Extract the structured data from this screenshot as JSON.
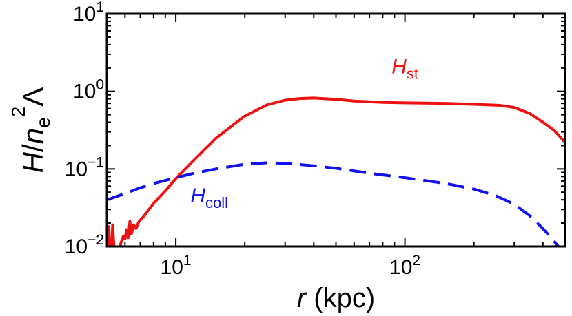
{
  "chart_data": {
    "type": "line",
    "title": "",
    "xlabel": {
      "var": "r",
      "unit": " (kpc)"
    },
    "ylabel": {
      "var1": "H",
      "slash": "/",
      "var2": "n",
      "sub": "e",
      "sup": "2",
      "tail": "Λ"
    },
    "x_scale": "log",
    "y_scale": "log",
    "xlim": [
      5,
      500
    ],
    "ylim": [
      0.01,
      10
    ],
    "x_ticks": [
      {
        "value": 10,
        "base": "10",
        "exp": "1"
      },
      {
        "value": 100,
        "base": "10",
        "exp": "2"
      }
    ],
    "y_ticks": [
      {
        "value": 0.01,
        "base": "10",
        "exp": "−2"
      },
      {
        "value": 0.1,
        "base": "10",
        "exp": "−1"
      },
      {
        "value": 1,
        "base": "10",
        "exp": "0"
      },
      {
        "value": 10,
        "base": "10",
        "exp": "1"
      }
    ],
    "series": [
      {
        "label": {
          "var": "H",
          "sub": "st"
        },
        "color": "#ee1111",
        "style": "solid",
        "points": [
          [
            5.05,
            0.006
          ],
          [
            5.1,
            0.018
          ],
          [
            5.2,
            0.004
          ],
          [
            5.3,
            0.019
          ],
          [
            5.45,
            0.005
          ],
          [
            5.6,
            0.004
          ],
          [
            5.75,
            0.011
          ],
          [
            5.9,
            0.0135
          ],
          [
            6.0,
            0.0125
          ],
          [
            6.1,
            0.0165
          ],
          [
            6.2,
            0.013
          ],
          [
            6.3,
            0.021
          ],
          [
            6.4,
            0.0145
          ],
          [
            6.55,
            0.019
          ],
          [
            6.7,
            0.017
          ],
          [
            6.9,
            0.021
          ],
          [
            7.2,
            0.024
          ],
          [
            8,
            0.036
          ],
          [
            9,
            0.052
          ],
          [
            10,
            0.075
          ],
          [
            12,
            0.13
          ],
          [
            15,
            0.25
          ],
          [
            20,
            0.48
          ],
          [
            25,
            0.67
          ],
          [
            30,
            0.77
          ],
          [
            35,
            0.81
          ],
          [
            40,
            0.82
          ],
          [
            50,
            0.79
          ],
          [
            60,
            0.75
          ],
          [
            80,
            0.72
          ],
          [
            100,
            0.71
          ],
          [
            150,
            0.7
          ],
          [
            200,
            0.68
          ],
          [
            260,
            0.66
          ],
          [
            300,
            0.62
          ],
          [
            350,
            0.52
          ],
          [
            400,
            0.4
          ],
          [
            450,
            0.31
          ],
          [
            500,
            0.22
          ]
        ]
      },
      {
        "label": {
          "var": "H",
          "sub": "coll"
        },
        "color": "#1111ee",
        "style": "dashed",
        "points": [
          [
            5,
            0.04
          ],
          [
            6,
            0.048
          ],
          [
            7,
            0.057
          ],
          [
            8,
            0.065
          ],
          [
            10,
            0.077
          ],
          [
            12,
            0.088
          ],
          [
            15,
            0.1
          ],
          [
            20,
            0.115
          ],
          [
            25,
            0.12
          ],
          [
            30,
            0.118
          ],
          [
            40,
            0.11
          ],
          [
            50,
            0.102
          ],
          [
            70,
            0.088
          ],
          [
            100,
            0.077
          ],
          [
            150,
            0.065
          ],
          [
            200,
            0.055
          ],
          [
            250,
            0.045
          ],
          [
            300,
            0.035
          ],
          [
            350,
            0.025
          ],
          [
            400,
            0.017
          ],
          [
            450,
            0.0115
          ],
          [
            500,
            0.0078
          ]
        ]
      }
    ],
    "annotations": [
      {
        "series": 0,
        "x": 100,
        "y": 1.7
      },
      {
        "series": 1,
        "x": 14,
        "y": 0.037
      }
    ]
  }
}
